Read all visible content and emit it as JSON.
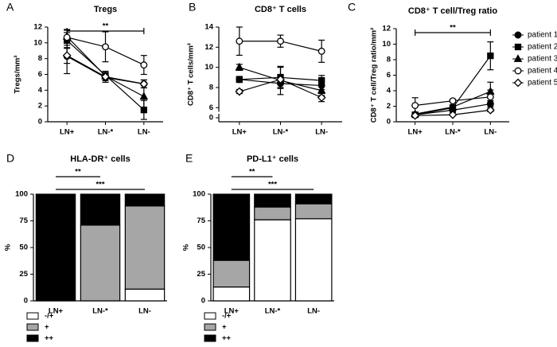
{
  "chart_data": [
    {
      "type": "line",
      "panel_label": "A",
      "title": "Tregs",
      "y_label": "Tregs/mm²",
      "categories": [
        "LN+",
        "LN-*",
        "LN-"
      ],
      "ylim": [
        0,
        12
      ],
      "yticks": [
        0,
        2,
        4,
        6,
        8,
        10,
        12
      ],
      "annotations": [
        {
          "text": "**",
          "from": "LN+",
          "to": "LN-"
        }
      ],
      "series": [
        {
          "marker": "circle",
          "filled": true,
          "color": "#000000",
          "values": [
            8.3,
            5.6,
            4.8
          ],
          "errors": [
            2.2,
            0.6,
            0.5
          ]
        },
        {
          "marker": "square",
          "filled": true,
          "color": "#000000",
          "values": [
            10.3,
            5.9,
            1.5
          ],
          "errors": [
            1.0,
            0.5,
            1.2
          ]
        },
        {
          "marker": "triangle",
          "filled": true,
          "color": "#000000",
          "values": [
            10.8,
            5.8,
            3.2
          ],
          "errors": [
            0.8,
            0.4,
            1.5
          ]
        },
        {
          "marker": "circle",
          "filled": false,
          "color": "#000000",
          "values": [
            10.7,
            9.5,
            7.2
          ],
          "errors": [
            1.0,
            1.9,
            1.2
          ]
        },
        {
          "marker": "diamond",
          "filled": false,
          "color": "#000000",
          "values": [
            8.4,
            5.7,
            4.8
          ],
          "errors": [
            1.0,
            0.5,
            0.5
          ]
        }
      ]
    },
    {
      "type": "line",
      "panel_label": "B",
      "title": "CD8⁺ T cells",
      "y_label": "CD8⁺ T cells/mm²",
      "categories": [
        "LN+",
        "LN-*",
        "LN-"
      ],
      "ylim": [
        4.6,
        14
      ],
      "yticks": [
        6,
        8,
        10,
        12,
        14
      ],
      "axis_break_tick": 0,
      "series": [
        {
          "marker": "circle",
          "filled": true,
          "color": "#000000",
          "values": [
            8.8,
            8.4,
            8.2
          ],
          "errors": [
            0.3,
            0.5,
            0.4
          ]
        },
        {
          "marker": "square",
          "filled": true,
          "color": "#000000",
          "values": [
            8.8,
            9.0,
            8.7
          ],
          "errors": [
            0.2,
            1.0,
            0.5
          ]
        },
        {
          "marker": "triangle",
          "filled": true,
          "color": "#000000",
          "values": [
            10.0,
            8.7,
            7.7
          ],
          "errors": [
            0.3,
            1.4,
            0.5
          ]
        },
        {
          "marker": "circle",
          "filled": false,
          "color": "#000000",
          "values": [
            12.6,
            12.6,
            11.6
          ],
          "errors": [
            1.4,
            0.6,
            1.1
          ]
        },
        {
          "marker": "diamond",
          "filled": false,
          "color": "#000000",
          "values": [
            7.6,
            8.8,
            7.0
          ],
          "errors": [
            0.2,
            0.5,
            0.4
          ]
        }
      ]
    },
    {
      "type": "line",
      "panel_label": "C",
      "title": "CD8⁺ T cell/Treg ratio",
      "y_label": "CD8⁺ T cell/Treg ratio/mm²",
      "categories": [
        "LN+",
        "LN-*",
        "LN-"
      ],
      "ylim": [
        0,
        12
      ],
      "yticks": [
        0,
        2,
        4,
        6,
        8,
        10,
        12
      ],
      "legend": "right",
      "annotations": [
        {
          "text": "**",
          "from": "LN+",
          "to": "LN-"
        }
      ],
      "series": [
        {
          "name": "patient 1",
          "marker": "circle",
          "filled": true,
          "color": "#000000",
          "values": [
            0.9,
            1.5,
            2.3
          ],
          "errors": [
            0.2,
            0.3,
            0.4
          ]
        },
        {
          "name": "patient 2",
          "marker": "square",
          "filled": true,
          "color": "#000000",
          "values": [
            0.9,
            1.8,
            8.5
          ],
          "errors": [
            0.2,
            0.3,
            1.8
          ]
        },
        {
          "name": "patient 3",
          "marker": "triangle",
          "filled": true,
          "color": "#000000",
          "values": [
            1.0,
            1.9,
            3.9
          ],
          "errors": [
            0.2,
            0.3,
            1.2
          ]
        },
        {
          "name": "patient 4",
          "marker": "circle",
          "filled": false,
          "color": "#000000",
          "values": [
            2.1,
            2.7,
            3.2
          ],
          "errors": [
            1.0,
            0.2,
            0.9
          ]
        },
        {
          "name": "patient 5",
          "marker": "diamond",
          "filled": false,
          "color": "#000000",
          "values": [
            0.8,
            0.9,
            1.5
          ],
          "errors": [
            0.1,
            0.1,
            0.2
          ]
        }
      ]
    },
    {
      "type": "bar",
      "stacked": true,
      "panel_label": "D",
      "title": "HLA-DR⁺ cells",
      "y_label": "%",
      "categories": [
        "LN+",
        "LN-*",
        "LN-"
      ],
      "ylim": [
        0,
        100
      ],
      "yticks": [
        0,
        25,
        50,
        75,
        100
      ],
      "legend": "bottom",
      "annotations": [
        {
          "text": "**",
          "from": "LN+",
          "to": "LN-*"
        },
        {
          "text": "***",
          "from": "LN+",
          "to": "LN-"
        }
      ],
      "series": [
        {
          "name": "-/+",
          "color": "#ffffff",
          "values": [
            0,
            0,
            11
          ]
        },
        {
          "name": "+",
          "color": "#a6a6a6",
          "values": [
            0,
            71,
            78
          ]
        },
        {
          "name": "++",
          "color": "#000000",
          "values": [
            100,
            29,
            11
          ]
        }
      ]
    },
    {
      "type": "bar",
      "stacked": true,
      "panel_label": "E",
      "title": "PD-L1⁺ cells",
      "y_label": "%",
      "categories": [
        "LN+",
        "LN-*",
        "LN-"
      ],
      "ylim": [
        0,
        100
      ],
      "yticks": [
        0,
        25,
        50,
        75,
        100
      ],
      "legend": "bottom",
      "annotations": [
        {
          "text": "**",
          "from": "LN+",
          "to": "LN-*"
        },
        {
          "text": "***",
          "from": "LN+",
          "to": "LN-"
        }
      ],
      "series": [
        {
          "name": "-/+",
          "color": "#ffffff",
          "values": [
            13,
            76,
            77
          ]
        },
        {
          "name": "+",
          "color": "#a6a6a6",
          "values": [
            25,
            12,
            14
          ]
        },
        {
          "name": "++",
          "color": "#000000",
          "values": [
            62,
            12,
            9
          ]
        }
      ]
    }
  ]
}
